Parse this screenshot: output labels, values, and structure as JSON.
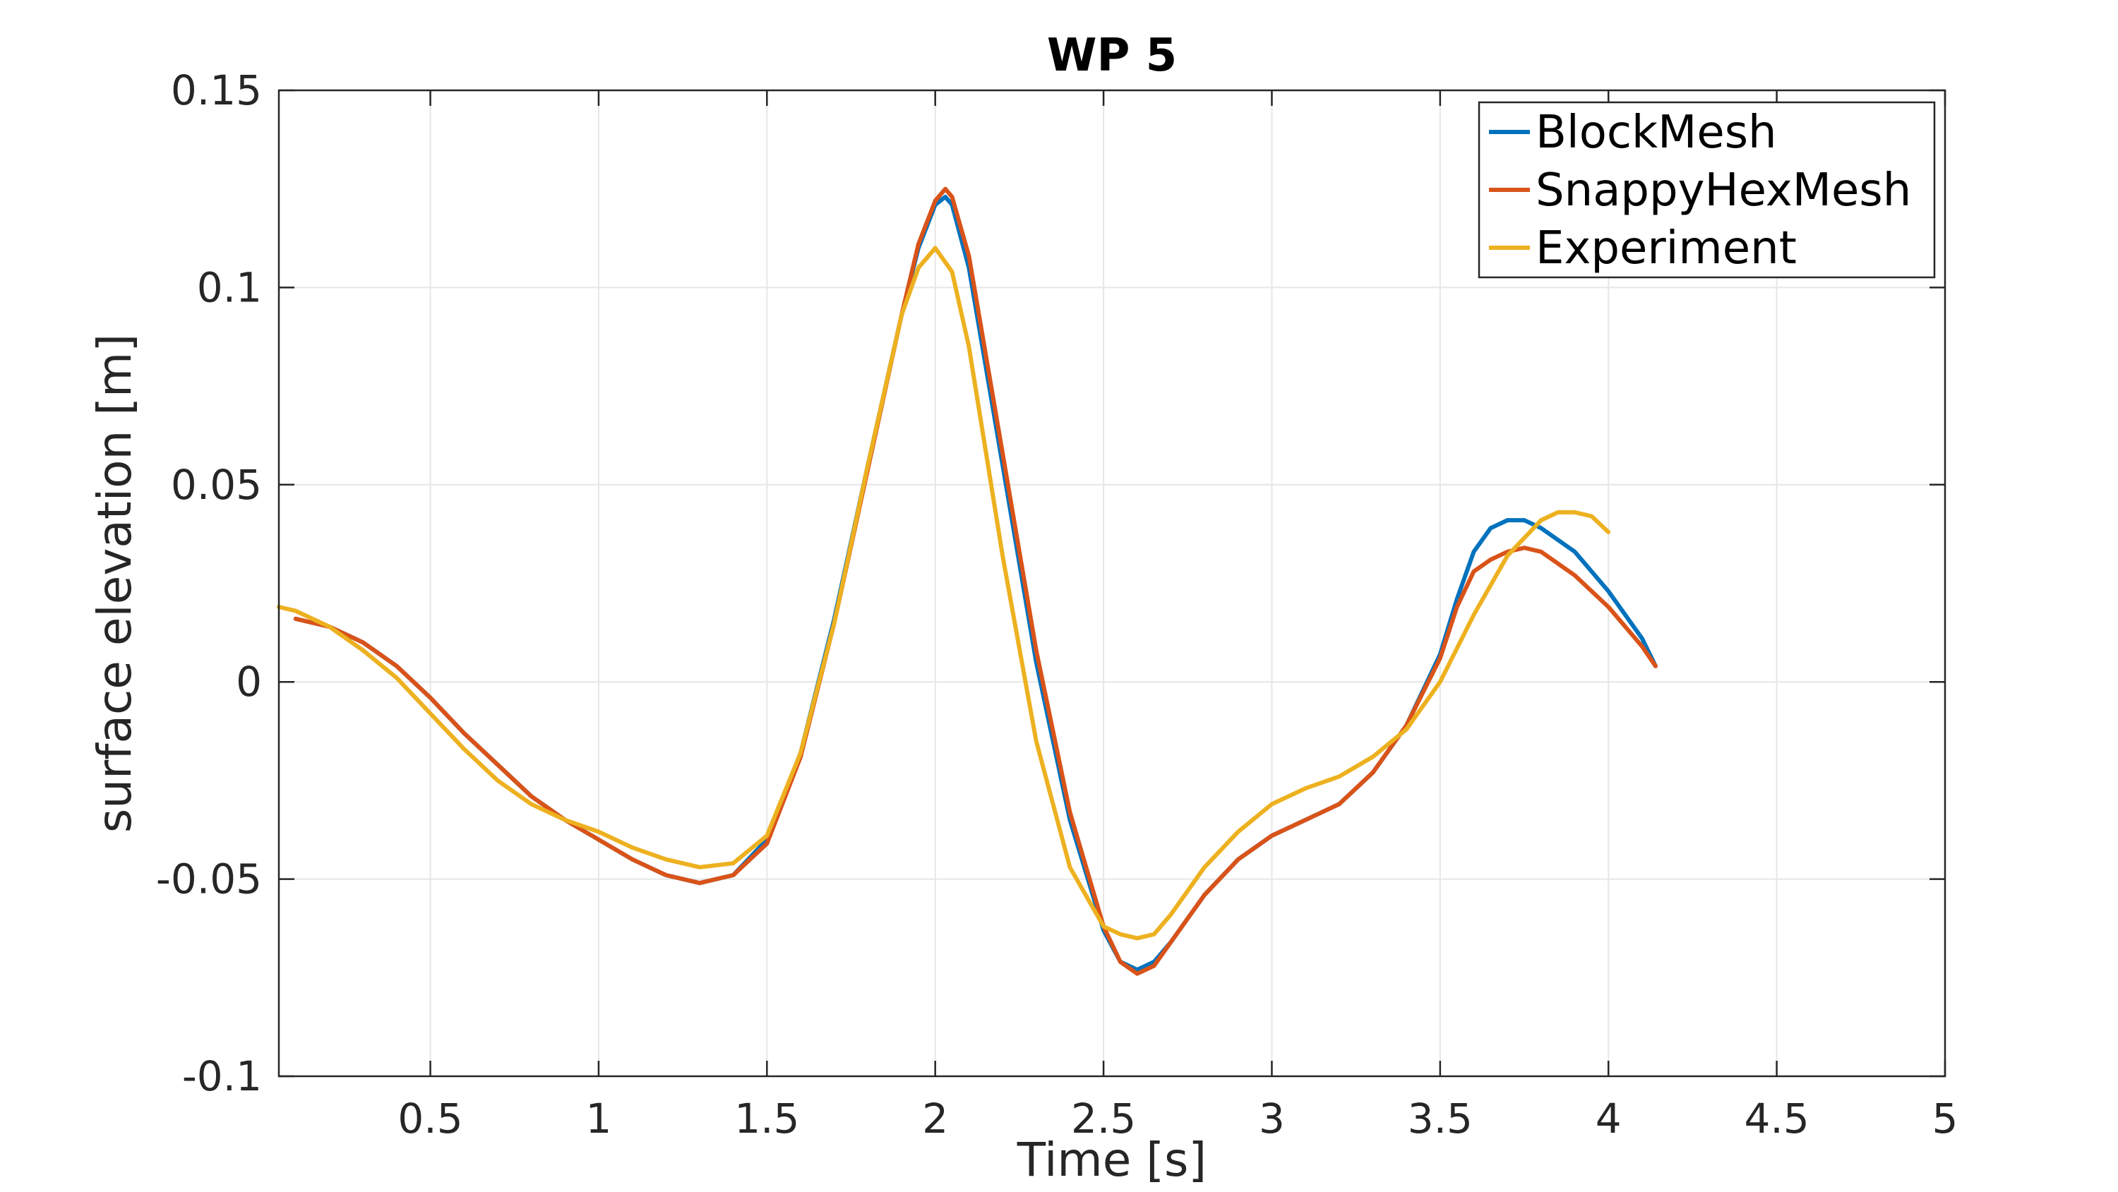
{
  "chart_data": {
    "type": "line",
    "title": "WP 5",
    "xlabel": "Time [s]",
    "ylabel": "surface elevation [m]",
    "xlim": [
      0.05,
      5
    ],
    "ylim": [
      -0.1,
      0.15
    ],
    "xticks": [
      0.5,
      1,
      1.5,
      2,
      2.5,
      3,
      3.5,
      4,
      4.5,
      5
    ],
    "xtick_labels": [
      "0.5",
      "1",
      "1.5",
      "2",
      "2.5",
      "3",
      "3.5",
      "4",
      "4.5",
      "5"
    ],
    "yticks": [
      -0.1,
      -0.05,
      0,
      0.05,
      0.1,
      0.15
    ],
    "ytick_labels": [
      "-0.1",
      "-0.05",
      "0",
      "0.05",
      "0.1",
      "0.15"
    ],
    "grid": true,
    "legend_position": "top-right",
    "series": [
      {
        "name": "BlockMesh",
        "color": "#0072BD",
        "x": [
          0.1,
          0.2,
          0.3,
          0.4,
          0.5,
          0.6,
          0.7,
          0.8,
          0.9,
          1.0,
          1.1,
          1.2,
          1.3,
          1.4,
          1.5,
          1.6,
          1.7,
          1.8,
          1.9,
          1.95,
          2.0,
          2.03,
          2.05,
          2.1,
          2.2,
          2.3,
          2.4,
          2.5,
          2.55,
          2.6,
          2.65,
          2.7,
          2.8,
          2.9,
          3.0,
          3.1,
          3.2,
          3.3,
          3.4,
          3.5,
          3.55,
          3.6,
          3.65,
          3.7,
          3.75,
          3.8,
          3.9,
          4.0,
          4.1,
          4.14
        ],
        "y": [
          0.016,
          0.014,
          0.01,
          0.004,
          -0.004,
          -0.013,
          -0.021,
          -0.029,
          -0.035,
          -0.04,
          -0.045,
          -0.049,
          -0.051,
          -0.049,
          -0.04,
          -0.018,
          0.016,
          0.055,
          0.093,
          0.11,
          0.121,
          0.123,
          0.121,
          0.105,
          0.055,
          0.005,
          -0.035,
          -0.063,
          -0.071,
          -0.073,
          -0.071,
          -0.066,
          -0.054,
          -0.045,
          -0.039,
          -0.035,
          -0.031,
          -0.023,
          -0.011,
          0.007,
          0.021,
          0.033,
          0.039,
          0.041,
          0.041,
          0.039,
          0.033,
          0.023,
          0.011,
          0.004
        ]
      },
      {
        "name": "SnappyHexMesh",
        "color": "#D95319",
        "x": [
          0.1,
          0.2,
          0.3,
          0.4,
          0.5,
          0.6,
          0.7,
          0.8,
          0.9,
          1.0,
          1.1,
          1.2,
          1.3,
          1.4,
          1.5,
          1.6,
          1.7,
          1.8,
          1.9,
          1.95,
          2.0,
          2.03,
          2.05,
          2.1,
          2.2,
          2.3,
          2.4,
          2.5,
          2.55,
          2.6,
          2.65,
          2.7,
          2.8,
          2.9,
          3.0,
          3.1,
          3.2,
          3.3,
          3.4,
          3.5,
          3.55,
          3.6,
          3.65,
          3.7,
          3.75,
          3.8,
          3.9,
          4.0,
          4.1,
          4.14
        ],
        "y": [
          0.016,
          0.014,
          0.01,
          0.004,
          -0.004,
          -0.013,
          -0.021,
          -0.029,
          -0.035,
          -0.04,
          -0.045,
          -0.049,
          -0.051,
          -0.049,
          -0.041,
          -0.019,
          0.015,
          0.054,
          0.093,
          0.111,
          0.122,
          0.125,
          0.123,
          0.108,
          0.058,
          0.008,
          -0.033,
          -0.062,
          -0.071,
          -0.074,
          -0.072,
          -0.066,
          -0.054,
          -0.045,
          -0.039,
          -0.035,
          -0.031,
          -0.023,
          -0.011,
          0.006,
          0.019,
          0.028,
          0.031,
          0.033,
          0.034,
          0.033,
          0.027,
          0.019,
          0.009,
          0.004
        ]
      },
      {
        "name": "Experiment",
        "color": "#EDB120",
        "x": [
          0.05,
          0.1,
          0.2,
          0.3,
          0.4,
          0.5,
          0.6,
          0.7,
          0.8,
          0.9,
          1.0,
          1.1,
          1.2,
          1.3,
          1.4,
          1.5,
          1.6,
          1.7,
          1.8,
          1.9,
          1.95,
          2.0,
          2.05,
          2.1,
          2.2,
          2.3,
          2.4,
          2.5,
          2.55,
          2.6,
          2.65,
          2.7,
          2.8,
          2.9,
          3.0,
          3.1,
          3.2,
          3.3,
          3.4,
          3.5,
          3.6,
          3.7,
          3.8,
          3.85,
          3.9,
          3.95,
          4.0
        ],
        "y": [
          0.019,
          0.018,
          0.014,
          0.008,
          0.001,
          -0.008,
          -0.017,
          -0.025,
          -0.031,
          -0.035,
          -0.038,
          -0.042,
          -0.045,
          -0.047,
          -0.046,
          -0.039,
          -0.018,
          0.015,
          0.055,
          0.093,
          0.105,
          0.11,
          0.104,
          0.085,
          0.032,
          -0.015,
          -0.047,
          -0.062,
          -0.064,
          -0.065,
          -0.064,
          -0.059,
          -0.047,
          -0.038,
          -0.031,
          -0.027,
          -0.024,
          -0.019,
          -0.012,
          0.0,
          0.017,
          0.032,
          0.041,
          0.043,
          0.043,
          0.042,
          0.038
        ]
      }
    ]
  }
}
